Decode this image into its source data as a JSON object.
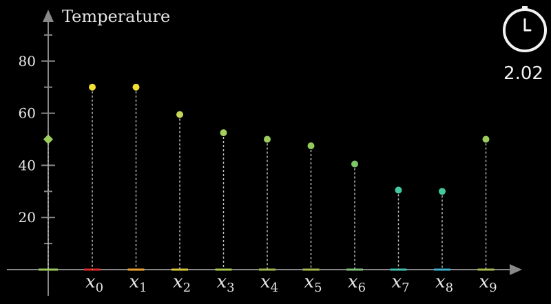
{
  "chart_data": {
    "type": "scatter",
    "title": "",
    "ylabel": "Temperature",
    "xlabel": "",
    "ylim": [
      -10,
      95
    ],
    "y_ticks": [
      20,
      40,
      60,
      80
    ],
    "y_minor_ticks": [
      10,
      30,
      50,
      70,
      90
    ],
    "categories": [
      {
        "name": "x",
        "sub": "0"
      },
      {
        "name": "x",
        "sub": "1"
      },
      {
        "name": "x",
        "sub": "2"
      },
      {
        "name": "x",
        "sub": "3"
      },
      {
        "name": "x",
        "sub": "4"
      },
      {
        "name": "x",
        "sub": "5"
      },
      {
        "name": "x",
        "sub": "6"
      },
      {
        "name": "x",
        "sub": "7"
      },
      {
        "name": "x",
        "sub": "8"
      },
      {
        "name": "x",
        "sub": "9"
      }
    ],
    "values": [
      70,
      70,
      59.5,
      52.5,
      50,
      47.5,
      40.5,
      30.5,
      30,
      50
    ],
    "point_colors": [
      "#f2e033",
      "#f2e033",
      "#c7d656",
      "#a6cf5c",
      "#9ccc5c",
      "#93c95c",
      "#7fc56a",
      "#43c9a0",
      "#43c9a0",
      "#9ccc5c"
    ],
    "marker_colors": [
      "#e02a2a",
      "#f0a030",
      "#d9c83a",
      "#a8c64a",
      "#a0b84a",
      "#a8b84a",
      "#7cc07a",
      "#3fc0b0",
      "#3fb0d0",
      "#a8b84a"
    ],
    "reference_point": {
      "value": 50,
      "color": "#9ccc5c"
    },
    "grid": false
  },
  "timer": {
    "icon": "clock-icon",
    "value": "2.02"
  }
}
